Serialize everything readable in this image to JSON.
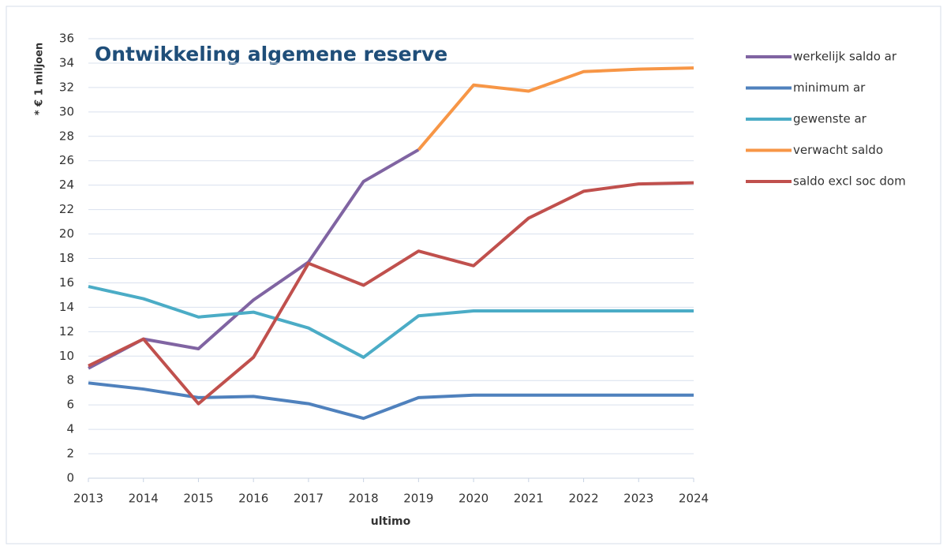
{
  "chart_data": {
    "type": "line",
    "title": "Ontwikkeling algemene reserve",
    "y_label": "* € 1 miljoen",
    "x_label": "ultimo",
    "x": [
      2013,
      2014,
      2015,
      2016,
      2017,
      2018,
      2019,
      2020,
      2021,
      2022,
      2023,
      2024
    ],
    "xlim": [
      2013,
      2024
    ],
    "xticks": [
      2013,
      2014,
      2015,
      2016,
      2017,
      2018,
      2019,
      2020,
      2021,
      2022,
      2023,
      2024
    ],
    "ylim": [
      0,
      36
    ],
    "yticks": [
      0,
      2,
      4,
      6,
      8,
      10,
      12,
      14,
      16,
      18,
      20,
      22,
      24,
      26,
      28,
      30,
      32,
      34,
      36
    ],
    "grid": true,
    "legend": "right",
    "series": [
      {
        "name": "werkelijk saldo ar",
        "color": "#8064a2",
        "values": [
          9.0,
          11.4,
          10.6,
          14.6,
          17.7,
          24.3,
          26.9,
          null,
          null,
          null,
          null,
          null
        ]
      },
      {
        "name": "minimum ar",
        "color": "#4f81bd",
        "values": [
          7.8,
          7.3,
          6.6,
          6.7,
          6.1,
          4.9,
          6.6,
          6.8,
          6.8,
          6.8,
          6.8,
          6.8
        ]
      },
      {
        "name": "gewenste ar",
        "color": "#4bacc6",
        "values": [
          15.7,
          14.7,
          13.2,
          13.6,
          12.3,
          9.9,
          13.3,
          13.7,
          13.7,
          13.7,
          13.7,
          13.7
        ]
      },
      {
        "name": "verwacht saldo",
        "color": "#f79646",
        "values": [
          null,
          null,
          null,
          null,
          null,
          null,
          26.9,
          32.2,
          31.7,
          33.3,
          33.5,
          33.6
        ]
      },
      {
        "name": "saldo excl soc dom",
        "color": "#c0504d",
        "values": [
          9.2,
          11.4,
          6.1,
          9.9,
          17.6,
          15.8,
          18.6,
          17.4,
          21.3,
          23.5,
          24.1,
          24.2
        ]
      }
    ]
  }
}
